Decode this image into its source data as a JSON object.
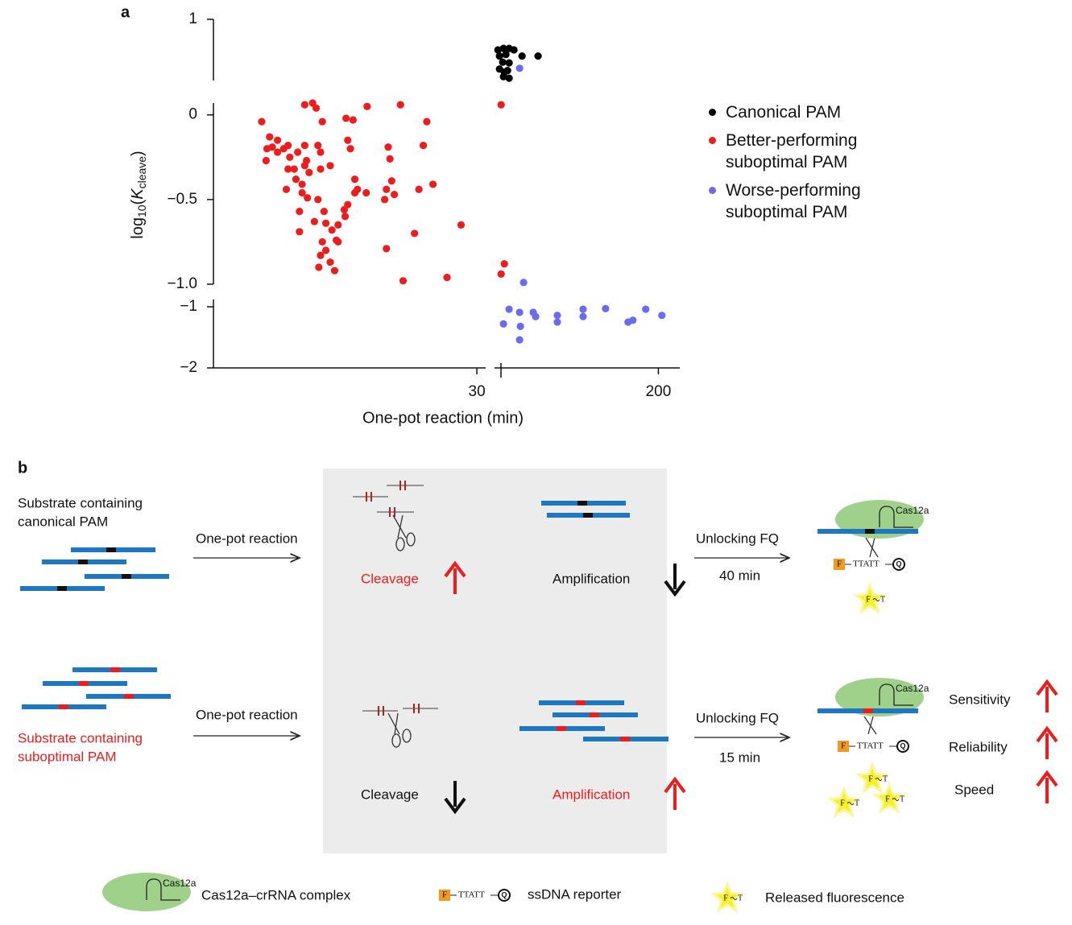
{
  "chart_data": {
    "type": "scatter",
    "panel_label": "a",
    "xlabel": "One-pot reaction (min)",
    "ylabel": [
      "log",
      "10",
      "(",
      "K",
      "cleave",
      ")"
    ],
    "x_segments": [
      {
        "xlim": [
          0,
          31
        ],
        "xticks": [
          30
        ]
      },
      {
        "xlim": [
          31.5,
          222
        ],
        "xticks": [
          200
        ]
      }
    ],
    "y_segments": [
      {
        "ylim": [
          0.2,
          1
        ],
        "yticks": [
          1
        ]
      },
      {
        "ylim": [
          -1,
          0.07
        ],
        "yticks": [
          0,
          {
            "value": -0.5,
            "label": "−0.5"
          },
          {
            "value": -1,
            "label": "−1.0"
          }
        ]
      },
      {
        "ylim": [
          -2,
          -0.88
        ],
        "yticks": [
          {
            "value": -1,
            "label": "−1"
          },
          {
            "value": -2,
            "label": "−2"
          }
        ]
      }
    ],
    "legend": "right",
    "series": [
      {
        "name": "Canonical PAM",
        "color": "#000000",
        "x": [
          35.0,
          40.7,
          46.5,
          51.5,
          36.6,
          43.2,
          59.8,
          76.3,
          39.9,
          46.5,
          36.6,
          44.9,
          40.7,
          46.5,
          41.6
        ],
        "values": [
          0.6,
          0.62,
          0.62,
          0.6,
          0.52,
          0.54,
          0.52,
          0.52,
          0.44,
          0.43,
          0.35,
          0.33,
          0.25,
          0.23,
          0.31
        ]
      },
      {
        "name": "Better-performing suboptimal PAM",
        "color": "#ee1c1c",
        "x": [
          5.5,
          6.4,
          7.3,
          6.7,
          8.0,
          6.0,
          7.3,
          8.5,
          8.7,
          9.6,
          10.4,
          11.9,
          12.2,
          10.6,
          9.2,
          9.4,
          10.1,
          10.9,
          12.2,
          13.3,
          15.3,
          15.6,
          15.9,
          15.1,
          12.4,
          11.7,
          10.4,
          11.3,
          17.5,
          21.3,
          19.9,
          20.1,
          24.3,
          23.9,
          20.3,
          19.7,
          20.6,
          19.5,
          17.4,
          16.1,
          15.3,
          15.0,
          14.2,
          13.5,
          12.6,
          11.9,
          10.7,
          10.1,
          9.8,
          11.5,
          12.8,
          14.0,
          12.4,
          12.8,
          12.2,
          12.0,
          13.3,
          13.8,
          14.2,
          14.9,
          16.1,
          16.4,
          9.8,
          19.7,
          22.9,
          23.4,
          25.0,
          28.2,
          21.6,
          26.6,
          6.1,
          8.5,
          8.3,
          10.4,
          38.3,
          41.6,
          38.3
        ],
        "values": [
          -0.04,
          -0.13,
          -0.15,
          -0.19,
          -0.2,
          -0.27,
          -0.22,
          -0.18,
          -0.25,
          -0.22,
          -0.18,
          -0.18,
          -0.22,
          -0.27,
          -0.32,
          -0.38,
          -0.41,
          -0.34,
          -0.32,
          -0.3,
          -0.15,
          -0.2,
          -0.03,
          -0.02,
          -0.04,
          0.04,
          0.06,
          0.07,
          0.05,
          0.06,
          -0.19,
          -0.26,
          -0.04,
          -0.18,
          -0.39,
          -0.44,
          -0.47,
          -0.5,
          -0.46,
          -0.46,
          -0.53,
          -0.6,
          -0.65,
          -0.68,
          -0.57,
          -0.5,
          -0.49,
          -0.46,
          -0.57,
          -0.63,
          -0.64,
          -0.74,
          -0.75,
          -0.8,
          -0.83,
          -0.9,
          -0.87,
          -0.92,
          -0.75,
          -0.56,
          -0.38,
          -0.44,
          -0.69,
          -0.79,
          -0.7,
          -0.44,
          -0.41,
          -0.65,
          -0.98,
          -0.96,
          -0.2,
          -0.32,
          -0.44,
          -0.3,
          0.06,
          -0.88,
          -0.94
        ]
      },
      {
        "name": "Worse-performing suboptimal PAM",
        "color": "#6b6bf2",
        "x": [
          57.3,
          61.4,
          40.7,
          46.5,
          57.3,
          71.3,
          73.8,
          58.1,
          57.3,
          96.1,
          96.1,
          122.6,
          122.6,
          145.7,
          168.8,
          173.8,
          187.0,
          203.6
        ],
        "values": [
          0.36,
          -0.99,
          -1.28,
          -1.04,
          -1.09,
          -1.09,
          -1.16,
          -1.32,
          -1.54,
          -1.14,
          -1.25,
          -1.04,
          -1.16,
          -1.03,
          -1.25,
          -1.22,
          -1.04,
          -1.14
        ]
      }
    ]
  },
  "diagram": {
    "panel_label": "b",
    "rows": [
      {
        "substrate": [
          "Substrate containing",
          "canonical PAM"
        ],
        "reaction": "One-pot reaction",
        "cleavage": "Cleavage",
        "amplification": "Amplification",
        "unlock": "Unlocking FQ",
        "time": "40 min"
      },
      {
        "substrate": [
          "Substrate containing",
          "suboptimal PAM"
        ],
        "reaction": "One-pot reaction",
        "cleavage": "Cleavage",
        "amplification": "Amplification",
        "unlock": "Unlocking FQ",
        "time": "15 min"
      }
    ],
    "outcomes": [
      "Sensitivity",
      "Reliability",
      "Speed"
    ],
    "cas12a": "Cas12a",
    "reporter": {
      "fluor": "F",
      "seq": "TTATT",
      "quencher": "Q"
    },
    "released": {
      "fluor": "F",
      "base": "T"
    },
    "legend": [
      "Cas12a–crRNA complex",
      "ssDNA reporter",
      "Released fluorescence"
    ]
  }
}
